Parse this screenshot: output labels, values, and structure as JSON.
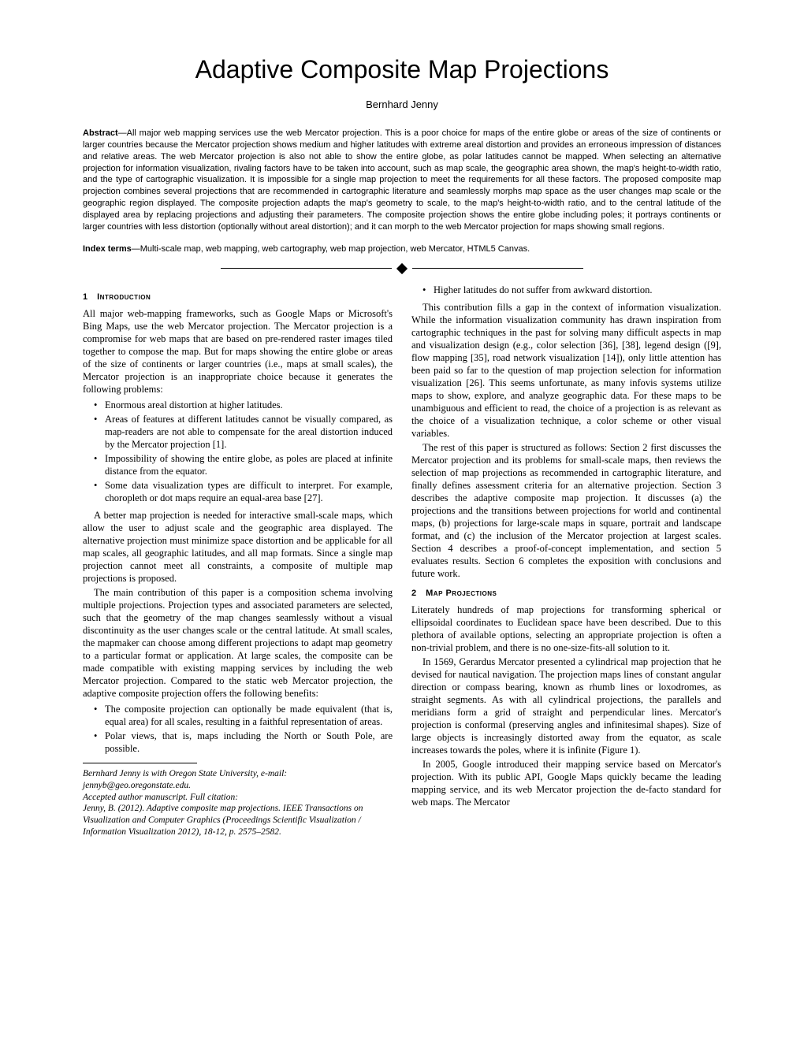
{
  "title": "Adaptive Composite Map Projections",
  "author": "Bernhard Jenny",
  "abstract_label": "Abstract",
  "abstract_text": "—All major web mapping services use the web Mercator projection. This is a poor choice for maps of the entire globe or areas of the size of continents or larger countries because the Mercator projection shows medium and higher latitudes with extreme areal distortion and provides an erroneous impression of distances and relative areas. The web Mercator projection is also not able to show the entire globe, as polar latitudes cannot be mapped. When selecting an alternative projection for information visualization, rivaling factors have to be taken into account, such as map scale, the geographic area shown, the map's height-to-width ratio, and the type of cartographic visualization. It is impossible for a single map projection to meet the requirements for all these factors. The proposed composite map projection combines several projections that are recommended in cartographic literature and seamlessly morphs map space as the user changes map scale or the geographic region displayed. The composite projection adapts the map's geometry to scale, to the map's height-to-width ratio, and to the central latitude of the displayed area by replacing projections and adjusting their parameters. The composite projection shows the entire globe including poles; it portrays continents or larger countries with less distortion (optionally without areal distortion); and it can morph to the web Mercator projection for maps showing small regions.",
  "index_label": "Index terms",
  "index_text": "—Multi-scale map, web mapping, web cartography, web map projection, web Mercator, HTML5 Canvas.",
  "sec1_num": "1",
  "sec1_title": "Introduction",
  "sec2_num": "2",
  "sec2_title": "Map Projections",
  "left": {
    "p1": "All major web-mapping frameworks, such as Google Maps or Microsoft's Bing Maps, use the web Mercator projection. The Mercator projection is a compromise for web maps that are based on pre-rendered raster images tiled together to compose the map. But for maps showing the entire globe or areas of the size of continents or larger countries (i.e., maps at small scales), the Mercator projection is an inappropriate choice because it generates the following problems:",
    "b1": "Enormous areal distortion at higher latitudes.",
    "b2": "Areas of features at different latitudes cannot be visually compared, as map-readers are not able to compensate for the areal distortion induced by the Mercator projection [1].",
    "b3": "Impossibility of showing the entire globe, as poles are placed at infinite distance from the equator.",
    "b4": "Some data visualization types are difficult to interpret. For example, choropleth or dot maps require an equal-area base [27].",
    "p2": "A better map projection is needed for interactive small-scale maps, which allow the user to adjust scale and the geographic area displayed. The alternative projection must minimize space distortion and be applicable for all map scales, all geographic latitudes, and all map formats. Since a single map projection cannot meet all constraints, a composite of multiple map projections is proposed.",
    "p3": "The main contribution of this paper is a composition schema involving multiple projections. Projection types and associated parameters are selected, such that the geometry of the map changes seamlessly without a visual discontinuity as the user changes scale or the central latitude. At small scales, the mapmaker can choose among different projections to adapt map geometry to a particular format or application. At large scales, the composite can be made compatible with existing mapping services by including the web Mercator projection. Compared to the static web Mercator projection, the adaptive composite projection offers the following benefits:",
    "b5": "The composite projection can optionally be made equivalent (that is, equal area) for all scales, resulting in a faithful representation of areas.",
    "b6": "Polar views, that is, maps including the North or South Pole, are possible."
  },
  "right": {
    "b7": "Higher latitudes do not suffer from awkward distortion.",
    "p1": "This contribution fills a gap in the context of information visualization. While the information visualization community has drawn inspiration from cartographic techniques in the past for solving many difficult aspects in map and visualization design (e.g., color selection [36], [38], legend design ([9], flow mapping [35], road network visualization [14]), only little attention has been paid so far to the question of map projection selection for information visualization [26]. This seems unfortunate, as many infovis systems utilize maps to show, explore, and analyze geographic data. For these maps to be unambiguous and efficient to read, the choice of a projection is as relevant as the choice of a visualization technique, a color scheme or other visual variables.",
    "p2": "The rest of this paper is structured as follows: Section 2 first discusses the Mercator projection and its problems for small-scale maps, then reviews the selection of map projections as recommended in cartographic literature, and finally defines assessment criteria for an alternative projection. Section 3 describes the adaptive composite map projection. It discusses (a) the projections and the transitions between projections for world and continental maps, (b) projections for large-scale maps in square, portrait and landscape format, and (c) the inclusion of the Mercator projection at largest scales. Section 4 describes a proof-of-concept implementation, and section 5 evaluates results. Section 6 completes the exposition with conclusions and future work.",
    "p3": "Literately hundreds of map projections for transforming spherical or ellipsoidal coordinates to Euclidean space have been described. Due to this plethora of available options, selecting an appropriate projection is often a non-trivial problem, and there is no one-size-fits-all solution to it.",
    "p4": "In 1569, Gerardus Mercator presented a cylindrical map projection that he devised for nautical navigation. The projection maps lines of constant angular direction or compass bearing, known as rhumb lines or loxodromes, as straight segments. As with all cylindrical projections, the parallels and meridians form a grid of straight and perpendicular lines. Mercator's projection is conformal (preserving angles and infinitesimal shapes). Size of large objects is increasingly distorted away from the equator, as scale increases towards the poles, where it is infinite (Figure 1).",
    "p5": "In 2005, Google introduced their mapping service based on Mercator's projection. With its public API, Google Maps quickly became the leading mapping service, and its web Mercator projection the de-facto standard for web maps. The Mercator"
  },
  "footnote": {
    "l1": "Bernhard Jenny is with Oregon State University, e-mail:",
    "l2": "jennyb@geo.oregonstate.edu.",
    "l3": "Accepted author manuscript. Full citation:",
    "l4": "Jenny, B. (2012). Adaptive composite map projections. IEEE Transactions on Visualization and Computer Graphics (Proceedings Scientific Visualization / Information Visualization 2012), 18-12, p. 2575–2582."
  }
}
